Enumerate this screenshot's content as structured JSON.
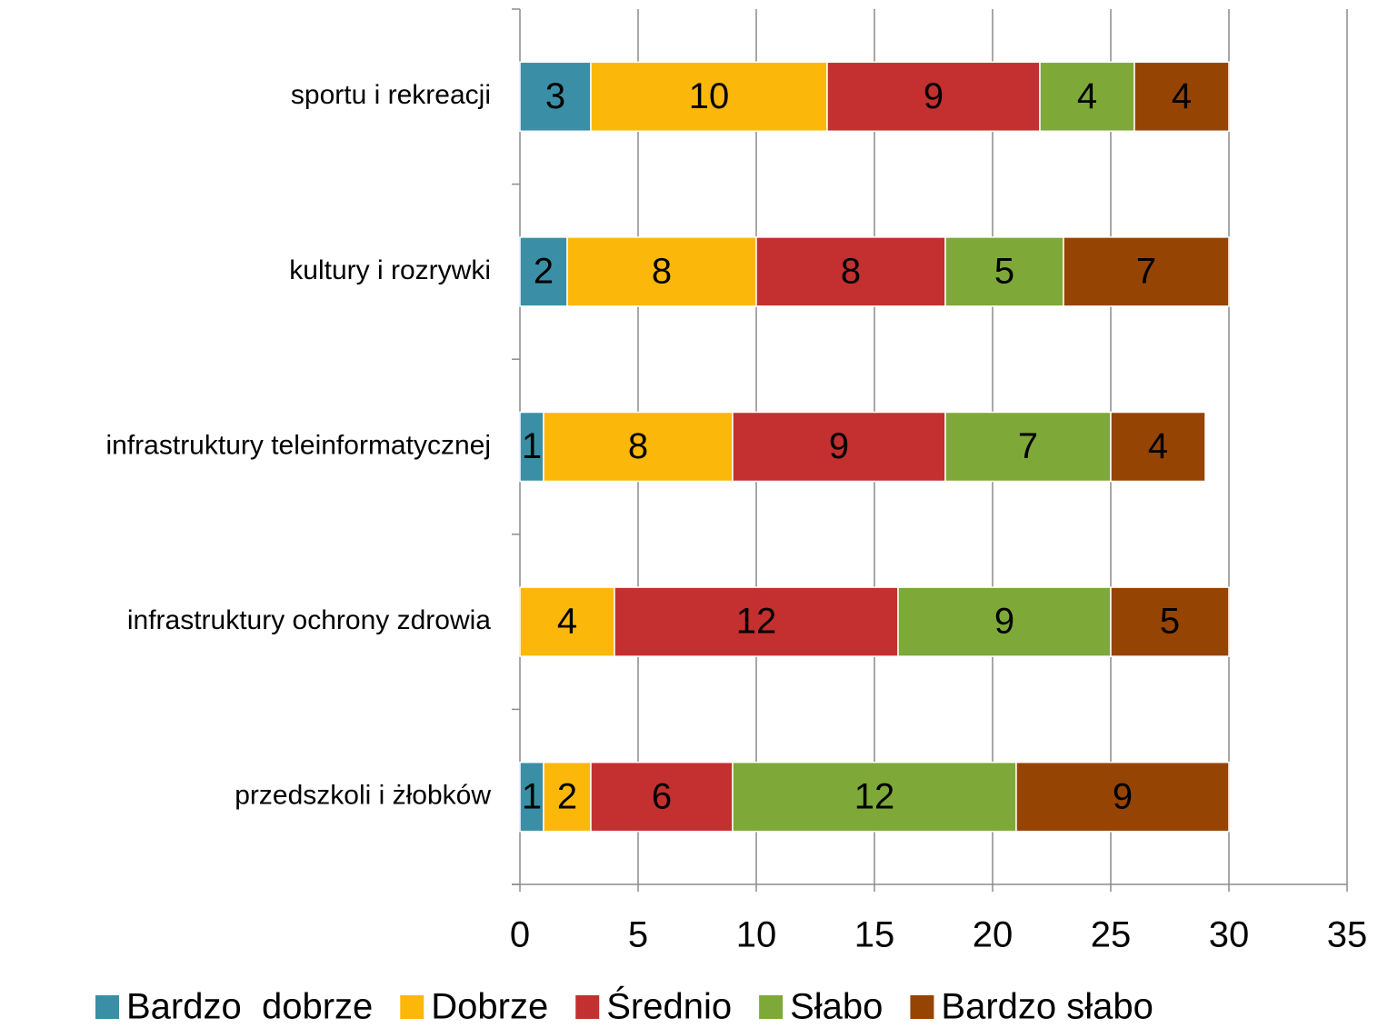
{
  "chart_data": {
    "type": "stacked-barh",
    "categories": [
      "sportu i rekreacji",
      "kultury i rozrywki",
      "infrastruktury teleinformatycznej",
      "infrastruktury ochrony zdrowia",
      "przedszkoli i żłobków"
    ],
    "series": [
      {
        "name": "Bardzo  dobrze",
        "color": "#3a8fa6",
        "values": [
          3,
          2,
          1,
          null,
          1
        ]
      },
      {
        "name": "Dobrze",
        "color": "#fbb80a",
        "values": [
          10,
          8,
          8,
          4,
          2
        ]
      },
      {
        "name": "Średnio",
        "color": "#c3302f",
        "values": [
          9,
          8,
          9,
          12,
          6
        ]
      },
      {
        "name": "Słabo",
        "color": "#7ea838",
        "values": [
          4,
          5,
          7,
          9,
          12
        ]
      },
      {
        "name": "Bardzo słabo",
        "color": "#954404",
        "values": [
          4,
          7,
          4,
          5,
          9
        ]
      }
    ],
    "xlim": [
      0,
      35
    ],
    "xticks": [
      0,
      5,
      10,
      15,
      20,
      25,
      30,
      35
    ],
    "grid": true,
    "legend": "bottom"
  }
}
